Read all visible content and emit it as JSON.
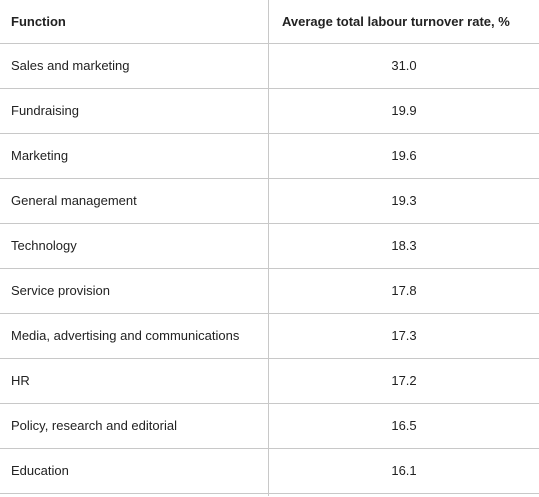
{
  "table": {
    "headers": [
      "Function",
      "Average total labour turnover rate, %"
    ],
    "rows": [
      {
        "function": "Sales and marketing",
        "rate": "31.0"
      },
      {
        "function": "Fundraising",
        "rate": "19.9"
      },
      {
        "function": "Marketing",
        "rate": "19.6"
      },
      {
        "function": "General management",
        "rate": "19.3"
      },
      {
        "function": "Technology",
        "rate": "18.3"
      },
      {
        "function": "Service provision",
        "rate": "17.8"
      },
      {
        "function": "Media, advertising and communications",
        "rate": "17.3"
      },
      {
        "function": "HR",
        "rate": "17.2"
      },
      {
        "function": "Policy, research and editorial",
        "rate": "16.5"
      },
      {
        "function": "Education",
        "rate": "16.1"
      }
    ]
  }
}
